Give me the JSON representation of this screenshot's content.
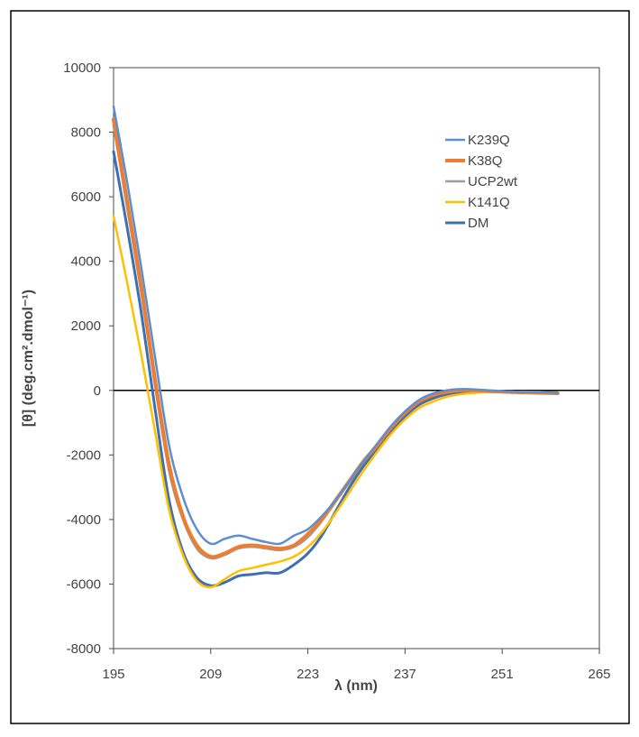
{
  "chart_data": {
    "type": "line",
    "title": "",
    "xlabel": "λ (nm)",
    "ylabel": "[θ] (deg.cm².dmol⁻¹)",
    "xlim": [
      195,
      265
    ],
    "ylim": [
      -8000,
      10000
    ],
    "xticks": [
      "195",
      "209",
      "223",
      "237",
      "251",
      "265"
    ],
    "yticks": [
      "10000",
      "8000",
      "6000",
      "4000",
      "2000",
      "0",
      "-2000",
      "-4000",
      "-6000",
      "-8000"
    ],
    "legend_position": "top-right",
    "grid": false,
    "colors": {
      "K239Q": "#5b8fd0",
      "K38Q": "#ed7d31",
      "UCP2wt": "#9e9e9e",
      "K141Q": "#ffc000",
      "DM": "#3e6fb3"
    },
    "series": [
      {
        "name": "K239Q",
        "x": [
          195,
          197,
          199,
          201,
          203,
          205,
          207,
          209,
          211,
          213,
          215,
          217,
          219,
          221,
          223,
          225,
          227,
          229,
          231,
          233,
          235,
          237,
          239,
          241,
          243,
          245,
          247,
          249,
          251,
          253,
          255,
          257,
          259
        ],
        "values": [
          8800,
          6400,
          3800,
          1000,
          -1700,
          -3300,
          -4300,
          -4750,
          -4600,
          -4500,
          -4600,
          -4700,
          -4750,
          -4500,
          -4300,
          -3900,
          -3400,
          -2800,
          -2200,
          -1650,
          -1100,
          -650,
          -300,
          -100,
          0,
          40,
          30,
          0,
          -20,
          -40,
          -50,
          -60,
          -80
        ]
      },
      {
        "name": "K38Q",
        "x": [
          195,
          197,
          199,
          201,
          203,
          205,
          207,
          209,
          211,
          213,
          215,
          217,
          219,
          221,
          223,
          225,
          227,
          229,
          231,
          233,
          235,
          237,
          239,
          241,
          243,
          245,
          247,
          249,
          251,
          253,
          255,
          257,
          259
        ],
        "values": [
          8400,
          5800,
          3200,
          300,
          -2300,
          -3900,
          -4800,
          -5150,
          -5050,
          -4850,
          -4800,
          -4850,
          -4900,
          -4800,
          -4450,
          -4000,
          -3400,
          -2800,
          -2200,
          -1700,
          -1150,
          -700,
          -350,
          -150,
          -50,
          0,
          0,
          -20,
          -40,
          -60,
          -70,
          -80,
          -90
        ]
      },
      {
        "name": "UCP2wt",
        "x": [
          195,
          197,
          199,
          201,
          203,
          205,
          207,
          209,
          211,
          213,
          215,
          217,
          219,
          221,
          223,
          225,
          227,
          229,
          231,
          233,
          235,
          237,
          239,
          241,
          243,
          245,
          247,
          249,
          251,
          253,
          255,
          257,
          259
        ],
        "values": [
          8200,
          5600,
          3000,
          100,
          -2500,
          -4000,
          -4900,
          -5200,
          -5100,
          -4900,
          -4850,
          -4900,
          -4950,
          -4850,
          -4550,
          -4050,
          -3450,
          -2850,
          -2250,
          -1750,
          -1200,
          -750,
          -400,
          -200,
          -100,
          -50,
          -30,
          -40,
          -50,
          -60,
          -70,
          -80,
          -90
        ]
      },
      {
        "name": "K141Q",
        "x": [
          195,
          197,
          199,
          201,
          203,
          205,
          207,
          209,
          211,
          213,
          215,
          217,
          219,
          221,
          223,
          225,
          227,
          229,
          231,
          233,
          235,
          237,
          239,
          241,
          243,
          245,
          247,
          249,
          251,
          253,
          255,
          257,
          259
        ],
        "values": [
          5400,
          3300,
          1100,
          -1300,
          -3700,
          -5100,
          -5900,
          -6100,
          -5850,
          -5600,
          -5500,
          -5400,
          -5300,
          -5150,
          -4850,
          -4400,
          -3800,
          -3150,
          -2500,
          -1900,
          -1350,
          -900,
          -550,
          -350,
          -200,
          -120,
          -80,
          -60,
          -50,
          -40,
          -40,
          -50,
          -60
        ]
      },
      {
        "name": "DM",
        "x": [
          195,
          197,
          199,
          201,
          203,
          205,
          207,
          209,
          211,
          213,
          215,
          217,
          219,
          221,
          223,
          225,
          227,
          229,
          231,
          233,
          235,
          237,
          239,
          241,
          243,
          245,
          247,
          249,
          251,
          253,
          255,
          257,
          259
        ],
        "values": [
          7400,
          5000,
          2400,
          -600,
          -3400,
          -5000,
          -5800,
          -6050,
          -5950,
          -5750,
          -5700,
          -5650,
          -5650,
          -5400,
          -5050,
          -4500,
          -3750,
          -3000,
          -2350,
          -1800,
          -1250,
          -800,
          -450,
          -250,
          -120,
          -60,
          -40,
          -40,
          -50,
          -60,
          -70,
          -80,
          -90
        ]
      }
    ]
  }
}
